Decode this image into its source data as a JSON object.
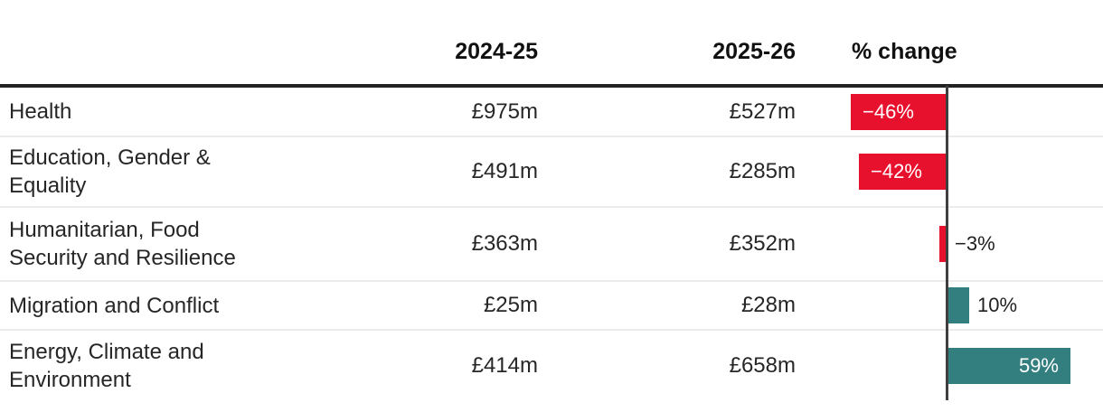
{
  "header": {
    "category": "",
    "col_2024": "2024-25",
    "col_2025": "2025-26",
    "col_change": "% change"
  },
  "rows": [
    {
      "label": "Health",
      "y2024": "£975m",
      "y2025": "£527m",
      "pct": -46,
      "pct_label": "−46%",
      "label_position": "inside"
    },
    {
      "label": "Education, Gender & Equality",
      "y2024": "£491m",
      "y2025": "£285m",
      "pct": -42,
      "pct_label": "−42%",
      "label_position": "inside"
    },
    {
      "label": "Humanitarian, Food Security and Resilience",
      "y2024": "£363m",
      "y2025": "£352m",
      "pct": -3,
      "pct_label": "−3%",
      "label_position": "outside"
    },
    {
      "label": "Migration and Conflict",
      "y2024": "£25m",
      "y2025": "£28m",
      "pct": 10,
      "pct_label": "10%",
      "label_position": "outside"
    },
    {
      "label": "Energy, Climate and Environment",
      "y2024": "£414m",
      "y2025": "£658m",
      "pct": 59,
      "pct_label": "59%",
      "label_position": "inside"
    }
  ],
  "colors": {
    "negative": "#e8112d",
    "positive": "#337f80",
    "axis": "#3f3f3f"
  },
  "chart_data": {
    "type": "bar",
    "orientation": "horizontal",
    "categories": [
      "Health",
      "Education, Gender & Equality",
      "Humanitarian, Food Security and Resilience",
      "Migration and Conflict",
      "Energy, Climate and Environment"
    ],
    "series": [
      {
        "name": "2024-25 (£m)",
        "values": [
          975,
          491,
          363,
          25,
          414
        ]
      },
      {
        "name": "2025-26 (£m)",
        "values": [
          527,
          285,
          352,
          28,
          658
        ]
      },
      {
        "name": "% change",
        "values": [
          -46,
          -42,
          -3,
          10,
          59
        ]
      }
    ],
    "title": "",
    "xlabel": "% change",
    "xlim": [
      -75,
      75
    ],
    "zero_axis_line": true,
    "grid": false,
    "legend": false,
    "negative_color": "#e8112d",
    "positive_color": "#337f80",
    "data_labels": [
      "−46%",
      "−42%",
      "−3%",
      "10%",
      "59%"
    ]
  }
}
